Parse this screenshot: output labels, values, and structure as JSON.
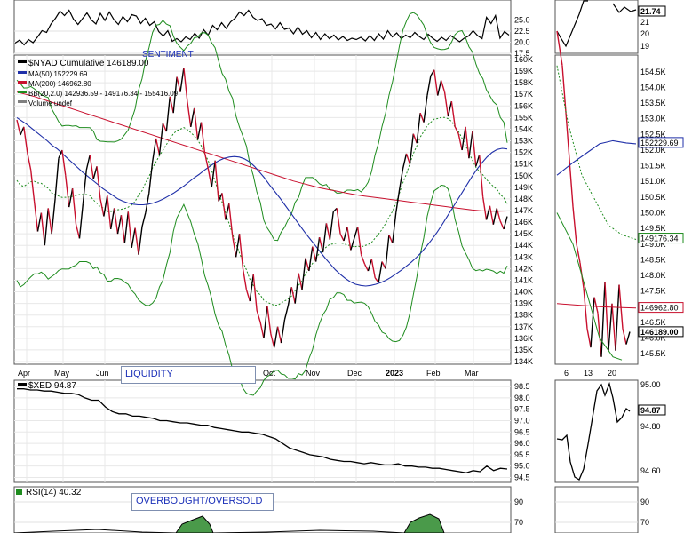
{
  "chart_data": [
    {
      "type": "line",
      "panel": "sentiment",
      "annotation": "SENTIMENT",
      "y_ticks": [
        "25.0",
        "22.5",
        "20.0",
        "17.5"
      ],
      "right_ticks": [
        "21.74",
        "21",
        "20",
        "19"
      ],
      "right_last_value": "21.74",
      "series": [
        {
          "x": [
            0,
            5,
            10,
            15,
            20,
            25,
            30,
            35,
            40,
            45,
            50,
            55,
            60,
            65,
            70,
            75,
            80,
            85,
            90,
            95,
            100,
            105,
            110,
            115,
            120,
            125,
            130,
            135,
            140,
            145,
            150,
            155,
            160,
            165,
            170,
            175,
            180,
            185,
            190,
            195,
            200,
            205,
            210,
            215,
            220,
            225,
            230,
            235,
            240,
            245,
            250,
            255,
            260,
            265,
            270,
            275,
            280,
            285,
            290,
            295,
            300,
            305,
            310,
            315,
            320,
            325,
            330,
            335,
            340,
            345,
            350,
            355,
            360,
            365,
            370,
            375,
            380,
            385,
            390,
            395,
            400,
            405,
            410,
            415,
            420,
            425,
            430,
            435,
            440,
            445,
            450,
            455,
            460,
            465,
            470,
            475,
            480,
            485,
            490,
            495,
            500,
            505,
            510,
            515,
            520,
            525,
            530,
            535,
            540,
            545,
            550
          ],
          "y": [
            19.8,
            20.5,
            19.4,
            20.6,
            19.9,
            21.2,
            22.6,
            22.2,
            24.1,
            25.4,
            27.0,
            26.0,
            27.2,
            25.2,
            24.0,
            25.3,
            26.6,
            25.0,
            24.1,
            26.5,
            24.9,
            26.8,
            25.1,
            24.0,
            25.8,
            24.6,
            26.2,
            25.9,
            24.2,
            25.4,
            23.8,
            24.6,
            22.4,
            21.4,
            22.6,
            20.2,
            20.8,
            20.1,
            21.2,
            20.6,
            22.0,
            20.9,
            22.8,
            21.6,
            23.8,
            22.8,
            24.4,
            23.1,
            24.6,
            25.4,
            26.8,
            26.0,
            27.2,
            25.6,
            24.9,
            25.3,
            23.8,
            24.1,
            23.0,
            24.4,
            22.9,
            23.2,
            21.9,
            23.4,
            21.8,
            22.6,
            21.0,
            22.2,
            20.6,
            21.9,
            20.8,
            21.6,
            20.5,
            21.3,
            20.4,
            20.9,
            20.6,
            21.1,
            20.3,
            21.5,
            20.4,
            21.9,
            20.7,
            22.6,
            21.2,
            22.1,
            20.8,
            21.6,
            21.0,
            22.2,
            21.3,
            20.6,
            21.8,
            20.9,
            20.2,
            21.1,
            20.4,
            21.5,
            20.8,
            20.1,
            20.9,
            21.4,
            22.6,
            21.5,
            20.8,
            25.6,
            24.2,
            26.0,
            20.9,
            22.4,
            21.6
          ]
        }
      ]
    },
    {
      "type": "line",
      "panel": "nyad",
      "title": "$NYAD Cumulative 146189.00",
      "legend": [
        {
          "name": "MA(50) 152229.69",
          "color": "#1f2fa8"
        },
        {
          "name": "MA(200) 146962.80",
          "color": "#c8102e"
        },
        {
          "name": "BB(20,2.0) 142936.59 - 149176.34 - 155416.09",
          "color": "#1e8c1e"
        },
        {
          "name": "Volume undef",
          "color": "#808080"
        }
      ],
      "y_ticks": [
        "160K",
        "159K",
        "158K",
        "157K",
        "156K",
        "155K",
        "154K",
        "153K",
        "152K",
        "151K",
        "150K",
        "149K",
        "148K",
        "147K",
        "146K",
        "145K",
        "144K",
        "143K",
        "142K",
        "141K",
        "140K",
        "139K",
        "138K",
        "137K",
        "136K",
        "135K",
        "134K"
      ],
      "x_ticks": [
        "Apr",
        "May",
        "Jun",
        "Oct",
        "Nov",
        "Dec",
        "2023",
        "Feb",
        "Mar"
      ],
      "right_ticks": [
        "154.5K",
        "154.0K",
        "153.5K",
        "153.0K",
        "152.5K",
        "152.0K",
        "151.5K",
        "151.0K",
        "150.5K",
        "150.0K",
        "149.5K",
        "149.0K",
        "148.5K",
        "148.0K",
        "147.5K",
        "147.0K",
        "146.5K",
        "146.0K",
        "145.5K"
      ],
      "right_x_ticks": [
        "6",
        "13",
        "20"
      ],
      "right_value_labels": [
        "152229.69",
        "149176.34",
        "146962.80",
        "146189.00"
      ],
      "ylim": [
        134000,
        160000
      ],
      "close": [
        154800,
        153500,
        154200,
        152000,
        150500,
        147800,
        145200,
        146800,
        144000,
        147200,
        145000,
        148000,
        151500,
        152200,
        150000,
        147300,
        148900,
        145800,
        144600,
        147600,
        150500,
        151800,
        149700,
        150800,
        148000,
        146500,
        148300,
        145400,
        147200,
        145000,
        146600,
        144200,
        146900,
        143800,
        145500,
        143200,
        145600,
        146800,
        148500,
        151200,
        153200,
        151800,
        154500,
        153800,
        156800,
        155400,
        158500,
        157200,
        159300,
        156400,
        154200,
        155800,
        153100,
        154600,
        152000,
        150600,
        149000,
        151300,
        147800,
        148500,
        146200,
        147600,
        144800,
        143000,
        145000,
        142000,
        140200,
        139200,
        141500,
        138400,
        137400,
        136000,
        138800,
        136400,
        135200,
        137000,
        135600,
        137600,
        138800,
        140400,
        139000,
        141600,
        140200,
        142900,
        141800,
        143900,
        142600,
        144700,
        143400,
        145900,
        144500,
        146900,
        147200,
        145000,
        144400,
        145600,
        143600,
        144600,
        145600,
        143200,
        142400,
        141800,
        142800,
        141200,
        140800,
        142600,
        142000,
        144900,
        144200,
        146800,
        148800,
        150600,
        151900,
        151000,
        153600,
        152800,
        155400,
        154600,
        156900,
        158600,
        159100,
        156900,
        158200,
        157200,
        155100,
        156400,
        154200,
        153600,
        152200,
        154200,
        151500,
        153800,
        150800,
        151800,
        148200,
        146200,
        147400,
        145800,
        147200,
        146100,
        145400,
        146500
      ],
      "ma50": [
        155000,
        154700,
        154400,
        154050,
        153700,
        153350,
        153000,
        152600,
        152300,
        151900,
        151500,
        151100,
        150700,
        150300,
        149950,
        149600,
        149250,
        148900,
        148600,
        148300,
        148000,
        147800,
        147650,
        147550,
        147500,
        147500,
        147550,
        147650,
        147800,
        148000,
        148250,
        148500,
        148800,
        149100,
        149450,
        149800,
        150100,
        150450,
        150750,
        151050,
        151300,
        151500,
        151600,
        151650,
        151600,
        151450,
        151200,
        150800,
        150300,
        149800,
        149200,
        148650,
        148100,
        147500,
        146900,
        146300,
        145700,
        145100,
        144550,
        144000,
        143450,
        142900,
        142400,
        141900,
        141500,
        141150,
        140850,
        140650,
        140550,
        140500,
        140550,
        140650,
        140800,
        141000,
        141250,
        141550,
        141850,
        142200,
        142550,
        142950,
        143400,
        143900,
        144450,
        145050,
        145700,
        146400,
        147100,
        147800,
        148500,
        149200,
        149900,
        150550,
        151100,
        151600,
        152000,
        152250,
        152350,
        152300
      ],
      "ma200": [
        157200,
        157000,
        156800,
        156550,
        156300,
        156050,
        155800,
        155550,
        155300,
        155050,
        154800,
        154550,
        154300,
        154050,
        153800,
        153550,
        153300,
        153050,
        152800,
        152550,
        152300,
        152050,
        151800,
        151550,
        151300,
        151050,
        150800,
        150550,
        150300,
        150050,
        149800,
        149550,
        149350,
        149150,
        148950,
        148800,
        148650,
        148500,
        148350,
        148250,
        148150,
        148050,
        147950,
        147850,
        147750,
        147650,
        147550,
        147450,
        147350,
        147250,
        147150,
        147050,
        146980,
        146950,
        146950,
        146960
      ]
    },
    {
      "type": "line",
      "panel": "xed",
      "annotation": "LIQUIDITY",
      "title": "$XED 94.87",
      "y_ticks": [
        "98.5",
        "98.0",
        "97.5",
        "97.0",
        "96.5",
        "96.0",
        "95.5",
        "95.0",
        "94.5"
      ],
      "right_ticks": [
        "95.00",
        "94.87",
        "94.80",
        "94.60"
      ],
      "right_last_value": "94.87",
      "ylim": [
        94.4,
        98.7
      ],
      "values": [
        98.4,
        98.4,
        98.35,
        98.35,
        98.3,
        98.3,
        98.25,
        98.2,
        98.2,
        98.15,
        98.0,
        97.9,
        97.9,
        97.6,
        97.4,
        97.3,
        97.3,
        97.2,
        97.2,
        97.15,
        97.1,
        97.0,
        97.0,
        96.95,
        96.9,
        96.9,
        96.85,
        96.8,
        96.8,
        96.7,
        96.65,
        96.6,
        96.55,
        96.5,
        96.5,
        96.45,
        96.4,
        96.3,
        96.2,
        96.0,
        95.8,
        95.7,
        95.6,
        95.5,
        95.45,
        95.4,
        95.3,
        95.25,
        95.2,
        95.2,
        95.15,
        95.1,
        95.15,
        95.1,
        95.05,
        95.05,
        95.1,
        95.0,
        95.0,
        94.95,
        94.95,
        94.9,
        94.9,
        94.85,
        94.8,
        94.75,
        94.7,
        94.8,
        94.75,
        95.0,
        94.8,
        94.9,
        94.87
      ]
    },
    {
      "type": "line",
      "panel": "rsi",
      "annotation": "OVERBOUGHT/OVERSOLD",
      "title": "RSI(14) 40.32",
      "y_ticks": [
        "90",
        "70"
      ],
      "right_ticks": [
        "90",
        "70"
      ]
    }
  ]
}
